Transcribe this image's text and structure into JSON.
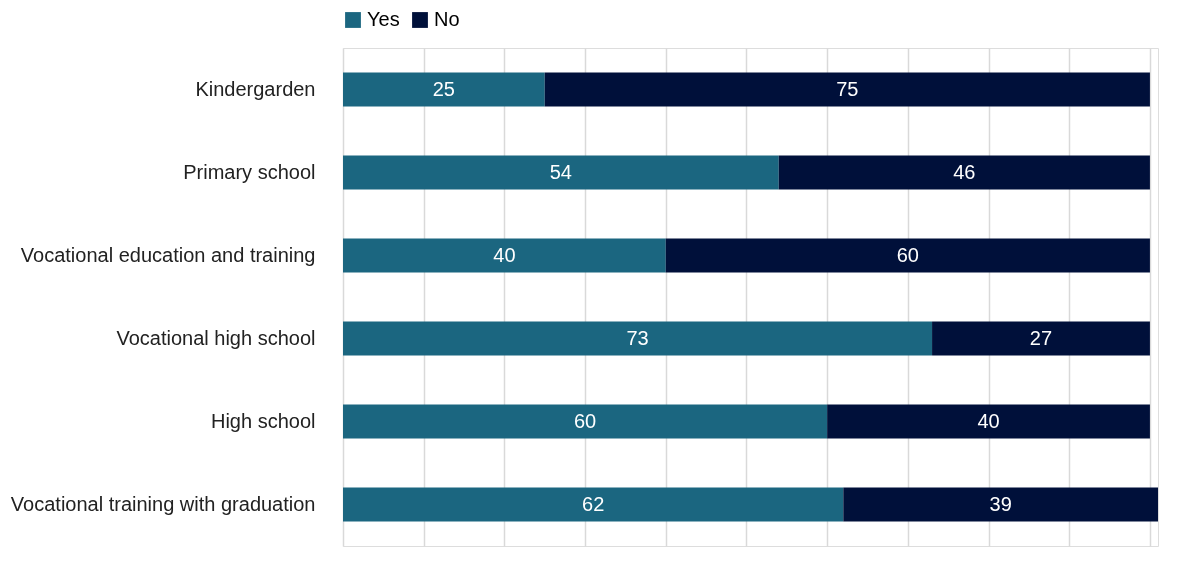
{
  "chart_data": {
    "type": "bar",
    "orientation": "horizontal",
    "stacked": true,
    "data_labels": true,
    "legend": "top",
    "grid": "x",
    "tick_labels": "y",
    "categories": [
      "Kindergarden",
      "Primary school",
      "Vocational education and training",
      "Vocational high school",
      "High school",
      "Vocational training with graduation"
    ],
    "series": [
      {
        "name": "Yes",
        "color": "#1b6680",
        "values": [
          25,
          54,
          40,
          73,
          60,
          62
        ]
      },
      {
        "name": "No",
        "color": "#00103a",
        "values": [
          75,
          46,
          60,
          27,
          40,
          39
        ]
      }
    ],
    "xlim": [
      0,
      101
    ],
    "xticks": [
      {
        "value": 0,
        "label": null
      },
      {
        "value": 10,
        "label": null
      },
      {
        "value": 20,
        "label": null
      },
      {
        "value": 30,
        "label": null
      },
      {
        "value": 40,
        "label": null
      },
      {
        "value": 50,
        "label": null
      },
      {
        "value": 60,
        "label": null
      },
      {
        "value": 70,
        "label": null
      },
      {
        "value": 80,
        "label": null
      },
      {
        "value": 90,
        "label": null
      },
      {
        "value": 100,
        "label": null
      }
    ]
  }
}
